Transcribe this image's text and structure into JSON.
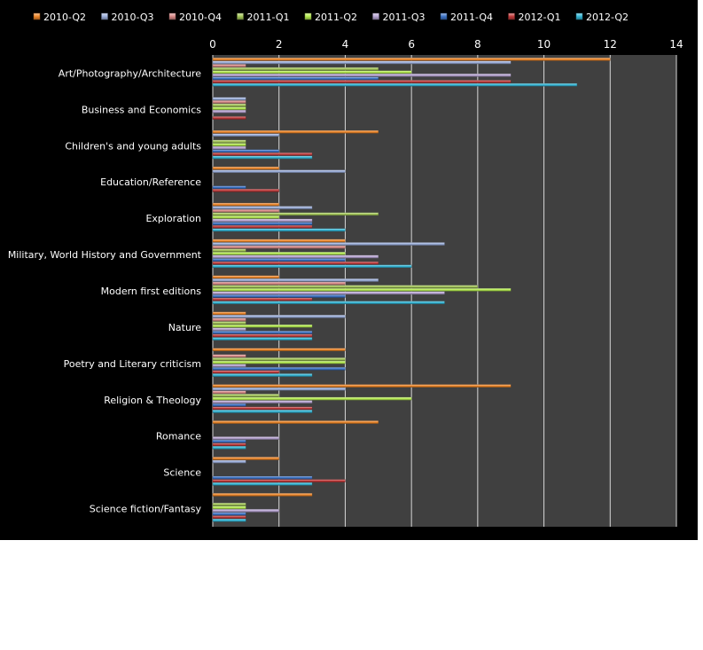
{
  "chart_data": {
    "type": "bar",
    "orientation": "horizontal",
    "xlim": [
      0,
      14
    ],
    "x_ticks": [
      "0",
      "2",
      "4",
      "6",
      "8",
      "10",
      "12",
      "14"
    ],
    "grid": true,
    "legend": "top",
    "colors": [
      "#f0882a",
      "#9db0dc",
      "#d98a88",
      "#a6c95a",
      "#b7ee52",
      "#b9a6d4",
      "#3d74c8",
      "#c03a3a",
      "#35b8d8"
    ],
    "background_plot": "#404040",
    "categories": [
      "Art/Photography/Architecture",
      "Business and Economics",
      "Children's and young adults",
      "Education/Reference",
      "Exploration",
      "Military, World History and Government",
      "Modern first editions",
      "Nature",
      "Poetry and Literary criticism",
      "Religion & Theology",
      "Romance",
      "Science",
      "Science fiction/Fantasy"
    ],
    "series": [
      {
        "name": "2010-Q2",
        "values": [
          12,
          0,
          5,
          2,
          2,
          4,
          2,
          1,
          4,
          9,
          5,
          2,
          3
        ]
      },
      {
        "name": "2010-Q3",
        "values": [
          9,
          1,
          2,
          4,
          3,
          7,
          5,
          4,
          0,
          4,
          0,
          1,
          0
        ]
      },
      {
        "name": "2010-Q4",
        "values": [
          1,
          1,
          0,
          0,
          2,
          4,
          4,
          1,
          1,
          1,
          0,
          0,
          0
        ]
      },
      {
        "name": "2011-Q1",
        "values": [
          5,
          1,
          1,
          0,
          5,
          1,
          8,
          1,
          4,
          2,
          0,
          0,
          1
        ]
      },
      {
        "name": "2011-Q2",
        "values": [
          6,
          1,
          1,
          0,
          2,
          4,
          9,
          3,
          4,
          6,
          0,
          0,
          1
        ]
      },
      {
        "name": "2011-Q3",
        "values": [
          9,
          1,
          1,
          0,
          3,
          5,
          7,
          1,
          1,
          3,
          2,
          0,
          2
        ]
      },
      {
        "name": "2011-Q4",
        "values": [
          5,
          0,
          2,
          1,
          3,
          4,
          4,
          3,
          4,
          1,
          1,
          3,
          1
        ]
      },
      {
        "name": "2012-Q1",
        "values": [
          9,
          1,
          3,
          2,
          3,
          5,
          3,
          3,
          2,
          3,
          1,
          4,
          1
        ]
      },
      {
        "name": "2012-Q2",
        "values": [
          11,
          0,
          3,
          0,
          4,
          6,
          7,
          3,
          3,
          3,
          1,
          3,
          1
        ]
      }
    ]
  }
}
